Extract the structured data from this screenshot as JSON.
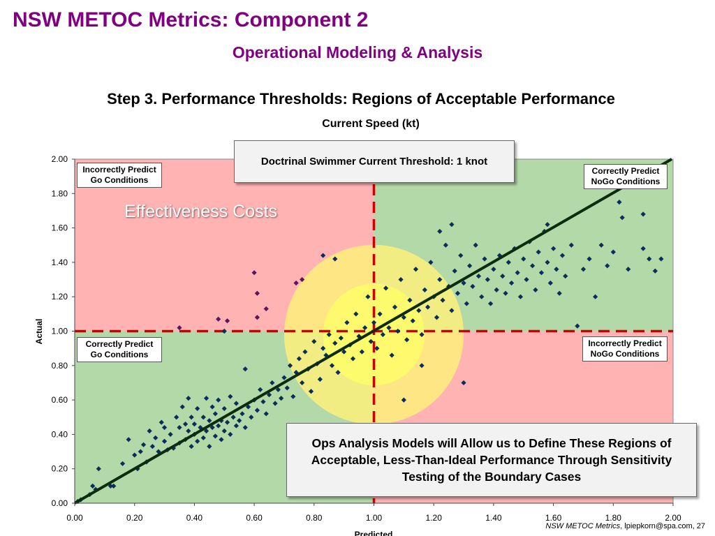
{
  "slide": {
    "title": "NSW METOC Metrics:  Component 2",
    "subtitle": "Operational Modeling & Analysis",
    "step_title": "Step 3.  Performance Thresholds:  Regions of Acceptable Performance",
    "footer_italic": "NSW METOC Metrics",
    "footer_rest": ", lpiepkorn@spa.com,  27"
  },
  "annotations": {
    "threshold": "Doctrinal Swimmer Current Threshold:  1 knot",
    "ops": "Ops Analysis Models will Allow us to Define These Regions of Acceptable, Less-Than-Ideal Performance Through Sensitivity Testing of the Boundary Cases",
    "effectiveness": "Effectiveness Costs",
    "q_top_left": "Incorrectly Predict Go Conditions",
    "q_top_right": "Correctly Predict NoGo Conditions",
    "q_bottom_left": "Correctly Predict Go Conditions",
    "q_bottom_right": "Incorrectly Predict NoGo Conditions"
  },
  "colors": {
    "title": "#800080",
    "green_region": "#b3d9a8",
    "red_region": "#ffb3b3",
    "points": "#0b2d5b",
    "outlier_points": "#5b1560",
    "threshold_line": "#cc0000",
    "fit_line": "#0d2b0d",
    "yellow_outer": "#fff27a",
    "yellow_inner": "#ffff66"
  },
  "chart_data": {
    "type": "scatter",
    "title": "Current Speed (kt)",
    "xlabel": "Predicted",
    "ylabel": "Actual",
    "xlim": [
      0,
      2
    ],
    "ylim": [
      0,
      2
    ],
    "x_ticks": [
      "0.00",
      "0.20",
      "0.40",
      "0.60",
      "0.80",
      "1.00",
      "1.20",
      "1.40",
      "1.60",
      "1.80",
      "2.00"
    ],
    "y_ticks": [
      "0.00",
      "0.20",
      "0.40",
      "0.60",
      "0.80",
      "1.00",
      "1.20",
      "1.40",
      "1.60",
      "1.80",
      "2.00"
    ],
    "threshold": {
      "x": 1.0,
      "y": 1.0
    },
    "fit_line": {
      "x": [
        0.0,
        2.0
      ],
      "y": [
        0.0,
        2.0
      ]
    },
    "regions": [
      {
        "label": "Correctly Predict Go Conditions",
        "x": [
          0,
          1
        ],
        "y": [
          0,
          1
        ],
        "type": "green"
      },
      {
        "label": "Incorrectly Predict Go Conditions",
        "x": [
          0,
          1
        ],
        "y": [
          1,
          2
        ],
        "type": "red"
      },
      {
        "label": "Correctly Predict NoGo Conditions",
        "x": [
          1,
          2
        ],
        "y": [
          1,
          2
        ],
        "type": "green"
      },
      {
        "label": "Incorrectly Predict NoGo Conditions",
        "x": [
          1,
          2
        ],
        "y": [
          0,
          1
        ],
        "type": "red"
      }
    ],
    "uncertainty_circles": [
      {
        "center": [
          1.0,
          0.98
        ],
        "radius_x": 0.3
      },
      {
        "center": [
          1.0,
          0.98
        ],
        "radius_x": 0.17
      }
    ],
    "points": [
      [
        0.01,
        0.01
      ],
      [
        0.02,
        0.02
      ],
      [
        0.05,
        0.05
      ],
      [
        0.06,
        0.1
      ],
      [
        0.07,
        0.08
      ],
      [
        0.08,
        0.2
      ],
      [
        0.12,
        0.1
      ],
      [
        0.13,
        0.1
      ],
      [
        0.16,
        0.23
      ],
      [
        0.18,
        0.37
      ],
      [
        0.2,
        0.28
      ],
      [
        0.21,
        0.2
      ],
      [
        0.22,
        0.3
      ],
      [
        0.23,
        0.34
      ],
      [
        0.24,
        0.24
      ],
      [
        0.25,
        0.42
      ],
      [
        0.26,
        0.33
      ],
      [
        0.27,
        0.38
      ],
      [
        0.28,
        0.3
      ],
      [
        0.29,
        0.47
      ],
      [
        0.3,
        0.36
      ],
      [
        0.3,
        0.44
      ],
      [
        0.31,
        0.31
      ],
      [
        0.32,
        0.4
      ],
      [
        0.33,
        0.32
      ],
      [
        0.34,
        0.5
      ],
      [
        0.35,
        0.35
      ],
      [
        0.35,
        0.44
      ],
      [
        0.36,
        0.56
      ],
      [
        0.37,
        0.37
      ],
      [
        0.37,
        0.46
      ],
      [
        0.38,
        0.61
      ],
      [
        0.38,
        0.42
      ],
      [
        0.39,
        0.33
      ],
      [
        0.39,
        0.5
      ],
      [
        0.4,
        0.4
      ],
      [
        0.4,
        0.46
      ],
      [
        0.41,
        0.55
      ],
      [
        0.41,
        0.36
      ],
      [
        0.42,
        0.44
      ],
      [
        0.43,
        0.5
      ],
      [
        0.43,
        0.38
      ],
      [
        0.44,
        0.61
      ],
      [
        0.44,
        0.42
      ],
      [
        0.45,
        0.48
      ],
      [
        0.45,
        0.33
      ],
      [
        0.46,
        0.56
      ],
      [
        0.46,
        0.44
      ],
      [
        0.47,
        0.39
      ],
      [
        0.47,
        0.52
      ],
      [
        0.48,
        0.45
      ],
      [
        0.48,
        0.6
      ],
      [
        0.49,
        0.37
      ],
      [
        0.49,
        0.48
      ],
      [
        0.5,
        0.42
      ],
      [
        0.5,
        0.55
      ],
      [
        0.51,
        0.47
      ],
      [
        0.52,
        0.62
      ],
      [
        0.52,
        0.4
      ],
      [
        0.53,
        0.5
      ],
      [
        0.54,
        0.45
      ],
      [
        0.54,
        0.58
      ],
      [
        0.55,
        0.48
      ],
      [
        0.56,
        0.52
      ],
      [
        0.57,
        0.78
      ],
      [
        0.57,
        0.44
      ],
      [
        0.58,
        0.56
      ],
      [
        0.59,
        0.5
      ],
      [
        0.6,
        0.6
      ],
      [
        0.61,
        0.54
      ],
      [
        0.62,
        0.66
      ],
      [
        0.63,
        0.59
      ],
      [
        0.64,
        0.52
      ],
      [
        0.65,
        0.63
      ],
      [
        0.66,
        0.7
      ],
      [
        0.67,
        0.58
      ],
      [
        0.68,
        0.66
      ],
      [
        0.69,
        0.61
      ],
      [
        0.7,
        0.73
      ],
      [
        0.71,
        0.67
      ],
      [
        0.72,
        0.8
      ],
      [
        0.73,
        0.62
      ],
      [
        0.74,
        0.76
      ],
      [
        0.75,
        0.84
      ],
      [
        0.76,
        0.7
      ],
      [
        0.77,
        0.88
      ],
      [
        0.78,
        0.78
      ],
      [
        0.79,
        0.65
      ],
      [
        0.8,
        0.94
      ],
      [
        0.81,
        0.81
      ],
      [
        0.82,
        0.72
      ],
      [
        0.83,
        0.9
      ],
      [
        0.84,
        0.86
      ],
      [
        0.85,
        0.98
      ],
      [
        0.86,
        0.8
      ],
      [
        0.87,
        0.93
      ],
      [
        0.88,
        0.76
      ],
      [
        0.89,
        0.96
      ],
      [
        0.9,
        0.88
      ],
      [
        0.91,
        1.05
      ],
      [
        0.92,
        0.92
      ],
      [
        0.93,
        0.84
      ],
      [
        0.94,
        1.1
      ],
      [
        0.95,
        0.97
      ],
      [
        0.96,
        0.88
      ],
      [
        0.97,
        1.02
      ],
      [
        0.98,
        1.2
      ],
      [
        0.99,
        0.94
      ],
      [
        1.0,
        1.05
      ],
      [
        1.01,
        0.9
      ],
      [
        1.02,
        1.1
      ],
      [
        1.03,
        0.98
      ],
      [
        1.04,
        1.25
      ],
      [
        1.05,
        1.02
      ],
      [
        1.06,
        0.86
      ],
      [
        1.07,
        1.14
      ],
      [
        1.08,
        1.0
      ],
      [
        1.09,
        1.3
      ],
      [
        1.1,
        1.08
      ],
      [
        1.11,
        0.95
      ],
      [
        1.12,
        1.18
      ],
      [
        1.13,
        1.06
      ],
      [
        1.14,
        1.36
      ],
      [
        1.15,
        1.12
      ],
      [
        1.16,
        0.98
      ],
      [
        1.17,
        1.24
      ],
      [
        1.18,
        1.14
      ],
      [
        1.19,
        1.4
      ],
      [
        1.2,
        1.2
      ],
      [
        1.21,
        1.08
      ],
      [
        1.22,
        1.3
      ],
      [
        1.23,
        1.18
      ],
      [
        1.24,
        1.5
      ],
      [
        1.25,
        1.26
      ],
      [
        1.26,
        1.12
      ],
      [
        1.27,
        1.35
      ],
      [
        1.28,
        1.22
      ],
      [
        1.29,
        1.44
      ],
      [
        1.3,
        1.28
      ],
      [
        1.31,
        1.16
      ],
      [
        1.32,
        1.38
      ],
      [
        1.33,
        1.26
      ],
      [
        1.34,
        1.5
      ],
      [
        1.35,
        1.32
      ],
      [
        1.36,
        1.2
      ],
      [
        1.37,
        1.42
      ],
      [
        1.38,
        1.3
      ],
      [
        1.39,
        1.16
      ],
      [
        1.4,
        1.36
      ],
      [
        1.41,
        1.24
      ],
      [
        1.42,
        1.44
      ],
      [
        1.43,
        1.32
      ],
      [
        1.44,
        1.22
      ],
      [
        1.45,
        1.4
      ],
      [
        1.46,
        1.28
      ],
      [
        1.47,
        1.48
      ],
      [
        1.48,
        1.34
      ],
      [
        1.49,
        1.2
      ],
      [
        1.5,
        1.42
      ],
      [
        1.51,
        1.3
      ],
      [
        1.52,
        1.52
      ],
      [
        1.53,
        1.38
      ],
      [
        1.54,
        1.24
      ],
      [
        1.55,
        1.46
      ],
      [
        1.56,
        1.34
      ],
      [
        1.57,
        1.58
      ],
      [
        1.58,
        1.4
      ],
      [
        1.59,
        1.28
      ],
      [
        1.6,
        1.48
      ],
      [
        1.61,
        1.36
      ],
      [
        1.62,
        1.22
      ],
      [
        1.63,
        1.44
      ],
      [
        1.64,
        1.32
      ],
      [
        1.66,
        1.5
      ],
      [
        1.68,
        1.03
      ],
      [
        1.7,
        1.36
      ],
      [
        1.72,
        1.42
      ],
      [
        1.74,
        1.2
      ],
      [
        1.76,
        1.5
      ],
      [
        1.78,
        1.38
      ],
      [
        1.8,
        1.46
      ],
      [
        1.82,
        1.75
      ],
      [
        1.83,
        1.66
      ],
      [
        1.85,
        1.36
      ],
      [
        1.9,
        1.68
      ],
      [
        1.9,
        1.48
      ],
      [
        1.92,
        1.42
      ],
      [
        1.94,
        1.35
      ],
      [
        1.96,
        1.42
      ],
      [
        1.58,
        1.62
      ],
      [
        1.22,
        1.58
      ],
      [
        1.26,
        1.62
      ],
      [
        0.35,
        1.02
      ],
      [
        0.48,
        1.07
      ],
      [
        0.51,
        1.06
      ],
      [
        0.6,
        1.34
      ],
      [
        0.61,
        1.22
      ],
      [
        0.64,
        1.13
      ],
      [
        0.74,
        1.28
      ],
      [
        0.83,
        1.44
      ],
      [
        0.5,
        1.0
      ],
      [
        0.61,
        1.08
      ],
      [
        0.87,
        1.42
      ],
      [
        0.76,
        1.3
      ],
      [
        1.1,
        0.6
      ],
      [
        1.16,
        0.8
      ],
      [
        1.3,
        0.7
      ]
    ]
  }
}
